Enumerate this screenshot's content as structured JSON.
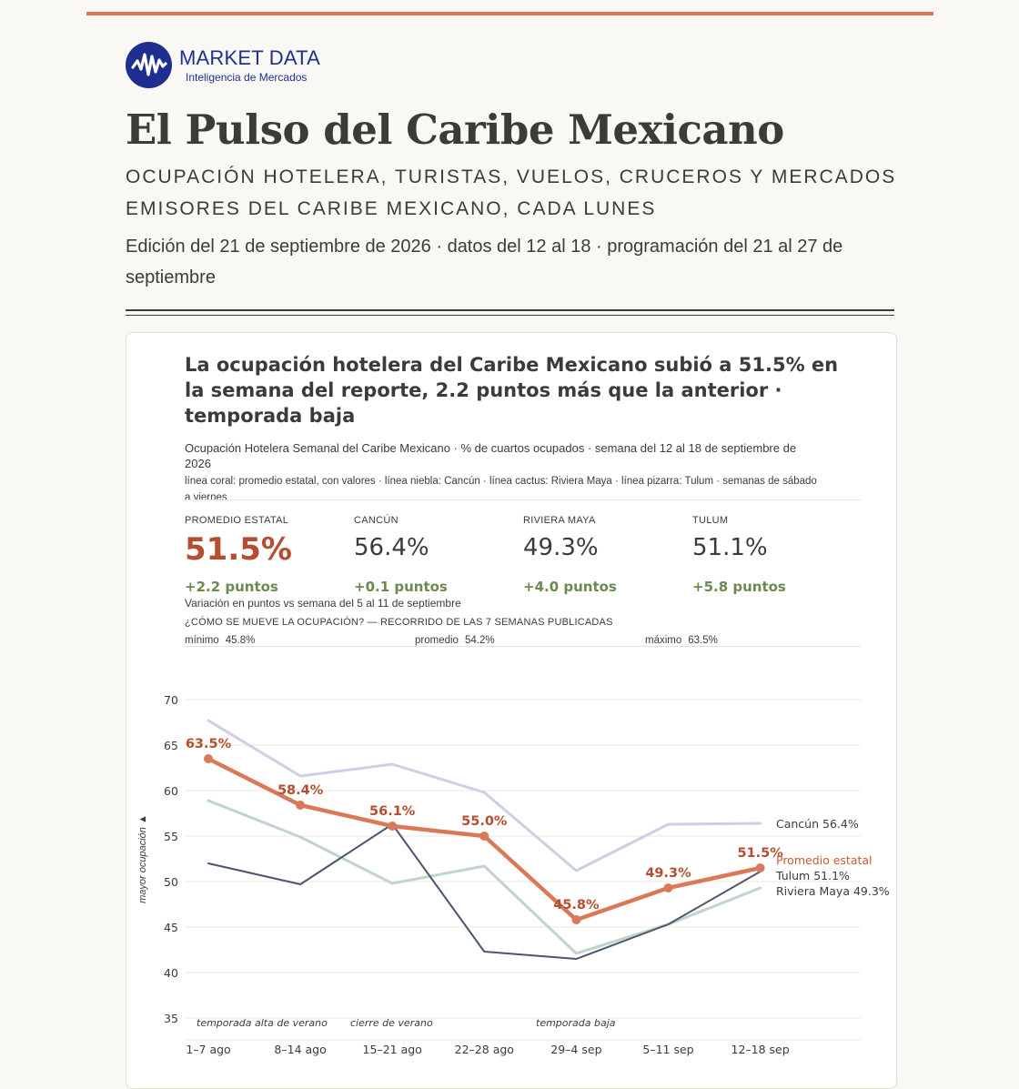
{
  "brand": {
    "name": "MARKET DATA",
    "tagline": "Inteligencia de Mercados"
  },
  "page": {
    "title": "El Pulso del Caribe Mexicano",
    "subtitle": "Ocupación hotelera, turistas, vuelos, cruceros y mercados emisores del Caribe Mexicano, cada lunes",
    "edition": "Edición del 21 de septiembre de 2026 · datos del 12 al 18 · programación del 21 al 27 de septiembre"
  },
  "colors": {
    "accent": "#d9795a",
    "brand": "#1f2f8f",
    "promedio": "#d9795a",
    "cancun": "#c9d1e3",
    "riviera": "#bfd5c8",
    "tulum": "#4a5670",
    "positive": "#6b8a4f"
  },
  "card": {
    "headline": "La ocupación hotelera del Caribe Mexicano subió a 51.5% en la semana del reporte, 2.2 puntos más que la anterior · temporada baja",
    "chart_subtitle": "Ocupación Hotelera Semanal del Caribe Mexicano · % de cuartos ocupados · semana del 12 al 18 de septiembre de 2026",
    "legend_note": "línea coral: promedio estatal, con valores · línea niebla: Cancún · línea cactus: Riviera Maya · línea pizarra: Tulum · semanas de sábado a viernes",
    "kpis": [
      {
        "label": "Promedio estatal",
        "value": "51.5%",
        "delta": "+2.2 puntos"
      },
      {
        "label": "Cancún",
        "value": "56.4%",
        "delta": "+0.1 puntos"
      },
      {
        "label": "Riviera Maya",
        "value": "49.3%",
        "delta": "+4.0 puntos"
      },
      {
        "label": "Tulum",
        "value": "51.1%",
        "delta": "+5.8 puntos"
      }
    ],
    "variation_note": "Variación en puntos vs semana del 5 al 11 de septiembre",
    "range_title": "¿Cómo se mueve la ocupación? — recorrido de las 7 semanas publicadas",
    "range": [
      {
        "label": "mínimo",
        "value": "45.8%"
      },
      {
        "label": "promedio",
        "value": "54.2%"
      },
      {
        "label": "máximo",
        "value": "63.5%"
      }
    ]
  },
  "chart_data": {
    "type": "line",
    "categories": [
      "1–7 ago",
      "8–14 ago",
      "15–21 ago",
      "22–28 ago",
      "29–4 sep",
      "5–11 sep",
      "12–18 sep"
    ],
    "ylabel": "mayor ocupación ▲",
    "ylim": [
      35,
      70
    ],
    "yticks": [
      35,
      40,
      45,
      50,
      55,
      60,
      65,
      70
    ],
    "grid": true,
    "series": [
      {
        "name": "Cancún",
        "end_label": "Cancún  56.4%",
        "color": "#c9d1e3",
        "values": [
          67.7,
          61.6,
          62.9,
          59.8,
          51.2,
          56.3,
          56.4
        ],
        "show_points": false,
        "show_values": false
      },
      {
        "name": "Riviera Maya",
        "end_label": "Riviera Maya  49.3%",
        "color": "#bfd5c8",
        "values": [
          58.9,
          54.9,
          49.8,
          51.7,
          42.1,
          45.3,
          49.3
        ],
        "show_points": false,
        "show_values": false
      },
      {
        "name": "Tulum",
        "end_label": "Tulum  51.1%",
        "color": "#4a5670",
        "values": [
          52.0,
          49.7,
          56.3,
          42.3,
          41.5,
          45.3,
          51.1
        ],
        "show_points": false,
        "show_values": false
      },
      {
        "name": "Promedio estatal",
        "end_label": "Promedio estatal",
        "color": "#d9795a",
        "values": [
          63.5,
          58.4,
          56.1,
          55.0,
          45.8,
          49.3,
          51.5
        ],
        "value_labels": [
          "63.5%",
          "58.4%",
          "56.1%",
          "55.0%",
          "45.8%",
          "49.3%",
          "51.5%"
        ],
        "show_points": true,
        "show_values": true
      }
    ],
    "annotations": [
      {
        "text": "temporada alta de verano",
        "category_index": 0
      },
      {
        "text": "cierre de verano",
        "category_index": 2
      },
      {
        "text": "temporada baja",
        "category_index": 4
      }
    ]
  }
}
